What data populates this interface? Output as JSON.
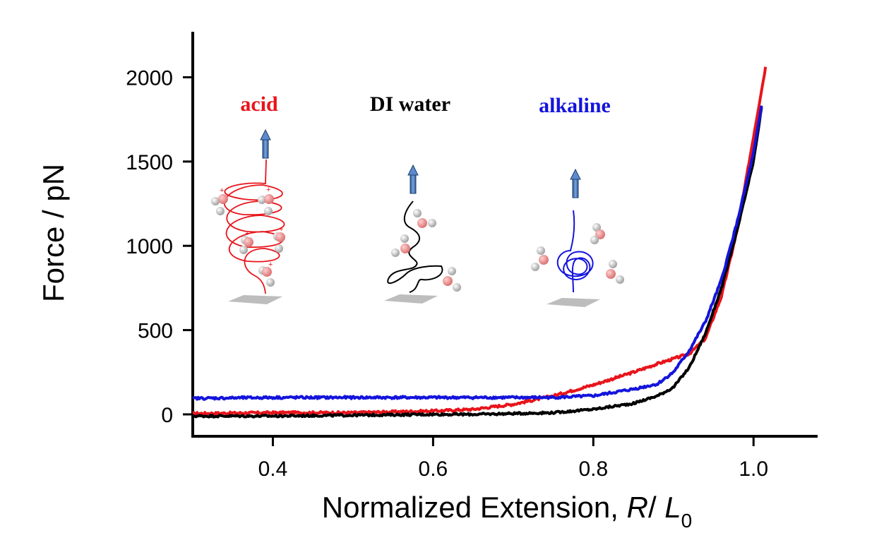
{
  "chart_data": {
    "type": "line",
    "title": "",
    "xlabel_main": "Normalized Extension, ",
    "xlabel_var": "R",
    "xlabel_sep": "/ ",
    "xlabel_var2": "L",
    "xlabel_sub": "0",
    "ylabel": "Force / pN",
    "xlim": [
      0.3,
      1.08
    ],
    "ylim": [
      -130,
      2270
    ],
    "xticks": [
      0.4,
      0.6,
      0.8,
      1.0
    ],
    "xtick_labels": [
      "0.4",
      "0.6",
      "0.8",
      "1.0"
    ],
    "yticks": [
      0,
      500,
      1000,
      1500,
      2000
    ],
    "ytick_labels": [
      "0",
      "500",
      "1000",
      "1500",
      "2000"
    ],
    "grid": false,
    "legend": "none",
    "series": [
      {
        "name": "acid",
        "color": "#e8141b",
        "noise": 7,
        "x": [
          0.3,
          0.4,
          0.5,
          0.6,
          0.65,
          0.7,
          0.75,
          0.8,
          0.85,
          0.88,
          0.9,
          0.92,
          0.94,
          0.96,
          0.98,
          1.0,
          1.015
        ],
        "y": [
          5,
          10,
          10,
          20,
          30,
          60,
          110,
          175,
          250,
          300,
          330,
          360,
          450,
          700,
          1100,
          1650,
          2060
        ]
      },
      {
        "name": "DI water",
        "color": "#000000",
        "noise": 6,
        "x": [
          0.3,
          0.4,
          0.5,
          0.6,
          0.65,
          0.7,
          0.75,
          0.8,
          0.85,
          0.88,
          0.9,
          0.92,
          0.94,
          0.96,
          0.98,
          1.0,
          1.01
        ],
        "y": [
          -10,
          -10,
          -5,
          0,
          0,
          5,
          10,
          30,
          65,
          110,
          160,
          280,
          480,
          750,
          1100,
          1500,
          1820
        ]
      },
      {
        "name": "alkaline",
        "color": "#1414dc",
        "noise": 7,
        "x": [
          0.3,
          0.4,
          0.5,
          0.6,
          0.7,
          0.75,
          0.8,
          0.85,
          0.88,
          0.9,
          0.92,
          0.94,
          0.96,
          0.98,
          1.0,
          1.01
        ],
        "y": [
          95,
          100,
          100,
          100,
          100,
          100,
          110,
          150,
          180,
          250,
          380,
          550,
          800,
          1150,
          1550,
          1830
        ]
      }
    ],
    "annotations": [
      {
        "text": "acid",
        "color": "#e8141b"
      },
      {
        "text": "DI water",
        "color": "#000000"
      },
      {
        "text": "alkaline",
        "color": "#1414dc"
      }
    ]
  }
}
